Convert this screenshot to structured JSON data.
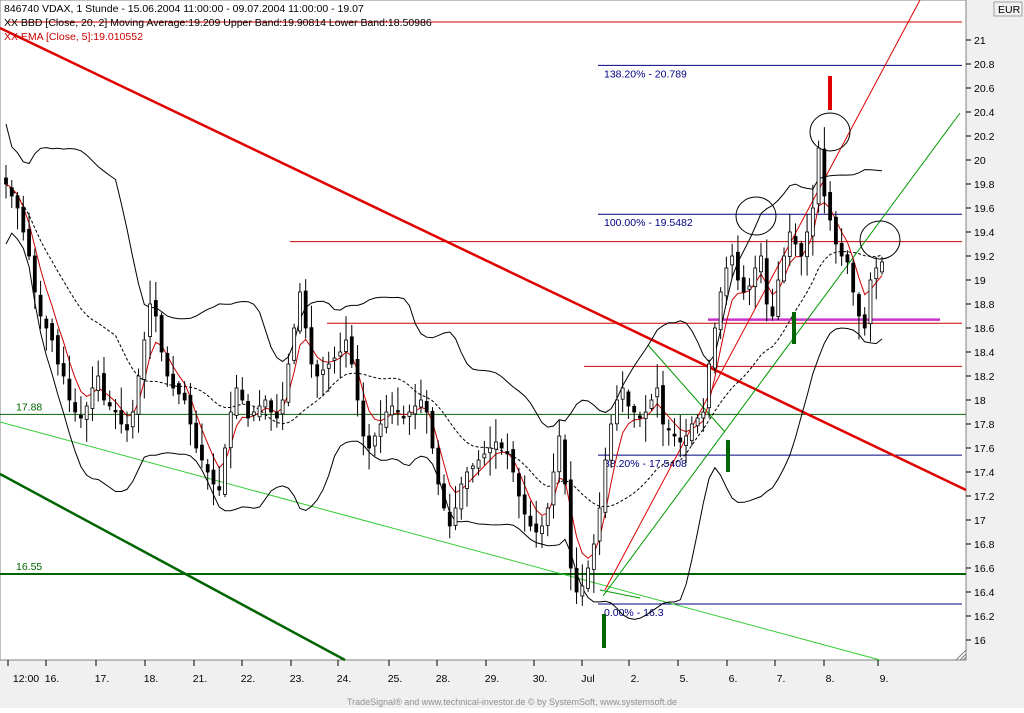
{
  "header": {
    "line1": "846740  VDAX, 1 Stunde - 15.06.2004 11:00:00 - 09.07.2004 11:00:00 - 19.07",
    "line2": "XX BBD [Close, 20, 2] Moving Average:19.209 Upper Band:19.90814 Lower Band:18.50986",
    "line3": "XX EMA [Close, 5]:19.010552"
  },
  "currency": "EUR",
  "footer": "TradeSignal® and www.technical-investor.de © by SystemSoft, www.systemsoft.de",
  "colors": {
    "candle": "#000000",
    "ema": "#cc0000",
    "band": "#000000",
    "moving_average": "#000000",
    "trend_down_red": "#e00000",
    "support_green_dark": "#006400",
    "support_green_light": "#33cc33",
    "fib_lines": "#000080",
    "horizontal_red": "#cc0000",
    "magenta": "#cc33cc",
    "axis_panel": "#f0f0f0"
  },
  "chart_data": {
    "type": "candlestick",
    "y_axis": {
      "min": 15.9,
      "max": 21.3,
      "ticks": [
        16,
        16.2,
        16.4,
        16.6,
        16.8,
        17,
        17.2,
        17.4,
        17.6,
        17.8,
        18,
        18.2,
        18.4,
        18.6,
        18.8,
        19,
        19.2,
        19.4,
        19.6,
        19.8,
        20,
        20.2,
        20.4,
        20.6,
        20.8,
        21
      ]
    },
    "x_axis": {
      "labels": [
        "12:00",
        "16.",
        "17.",
        "18.",
        "21.",
        "22.",
        "23.",
        "24.",
        "25.",
        "28.",
        "29.",
        "30.",
        "Jul",
        "2.",
        "5.",
        "6.",
        "7.",
        "8.",
        "9."
      ]
    },
    "fibonacci": [
      {
        "label": "138.20% - 20.789",
        "value": 20.789
      },
      {
        "label": "100.00% - 19.5482",
        "value": 19.5482
      },
      {
        "label": "38.20% - 17.5408",
        "value": 17.5408
      },
      {
        "label": "0.00% - 16.3",
        "value": 16.3
      }
    ],
    "support_levels": [
      {
        "label": "17.88",
        "value": 17.88
      },
      {
        "label": "16.55",
        "value": 16.55
      }
    ],
    "red_horizontal_levels": [
      21.15,
      19.32,
      18.64,
      18.28
    ],
    "magenta_level": 18.67,
    "indicators": {
      "moving_average_last": 19.209,
      "upper_band_last": 19.90814,
      "lower_band_last": 18.50986,
      "ema_last": 19.010552
    }
  }
}
